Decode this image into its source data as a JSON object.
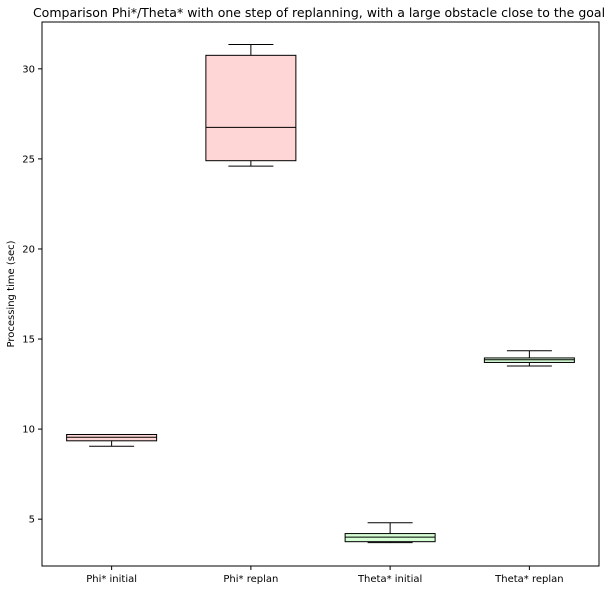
{
  "chart_data": {
    "type": "box",
    "title": "Comparison Phi*/Theta* with one step of replanning, with a large obstacle close to the goal",
    "xlabel": "",
    "ylabel": "Processing time (sec)",
    "ylim": [
      2.4,
      32.6
    ],
    "yticks": [
      5,
      10,
      15,
      20,
      25,
      30
    ],
    "ytick_labels": [
      "5",
      "10",
      "15",
      "20",
      "25",
      "30"
    ],
    "grid": false,
    "categories": [
      "Phi* initial",
      "Phi* replan",
      "Theta* initial",
      "Theta* replan"
    ],
    "boxes": [
      {
        "label": "Phi* initial",
        "whisker_low": 9.05,
        "q1": 9.35,
        "median": 9.55,
        "q3": 9.7,
        "whisker_high": 9.7,
        "color": "#ffd6d6"
      },
      {
        "label": "Phi* replan",
        "whisker_low": 24.6,
        "q1": 24.9,
        "median": 26.75,
        "q3": 30.75,
        "whisker_high": 31.35,
        "color": "#ffd6d6"
      },
      {
        "label": "Theta* initial",
        "whisker_low": 3.7,
        "q1": 3.75,
        "median": 4.0,
        "q3": 4.2,
        "whisker_high": 4.8,
        "color": "#d6ffd6"
      },
      {
        "label": "Theta* replan",
        "whisker_low": 13.5,
        "q1": 13.7,
        "median": 13.85,
        "q3": 13.95,
        "whisker_high": 14.35,
        "color": "#d6ffd6"
      }
    ]
  }
}
